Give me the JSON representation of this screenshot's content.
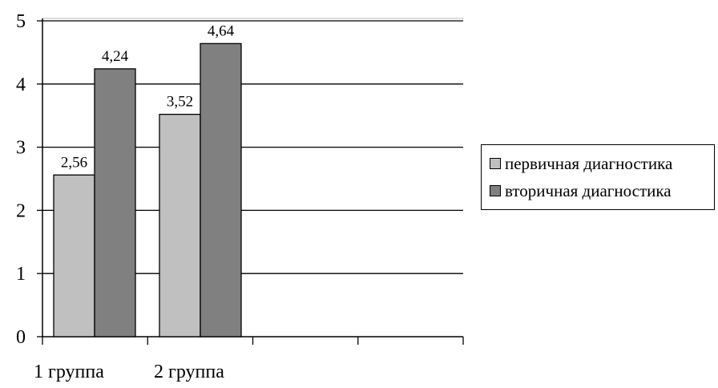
{
  "chart_data": {
    "type": "bar",
    "categories": [
      "1 группа",
      "2 группа"
    ],
    "series": [
      {
        "name": "первичная диагностика",
        "values": [
          2.56,
          3.52
        ],
        "labels": [
          "2,56",
          "3,52"
        ],
        "color": "#c0c0c0"
      },
      {
        "name": "вторичная диагностика",
        "values": [
          4.24,
          4.64
        ],
        "labels": [
          "4,24",
          "4,64"
        ],
        "color": "#808080"
      }
    ],
    "y_ticks": [
      "0",
      "1",
      "2",
      "3",
      "4",
      "5"
    ],
    "ylim": [
      0,
      5
    ],
    "grid": true,
    "legend_position": "right"
  },
  "legend": {
    "item0": "первичная диагностика",
    "item1": "вторичная диагностика"
  }
}
